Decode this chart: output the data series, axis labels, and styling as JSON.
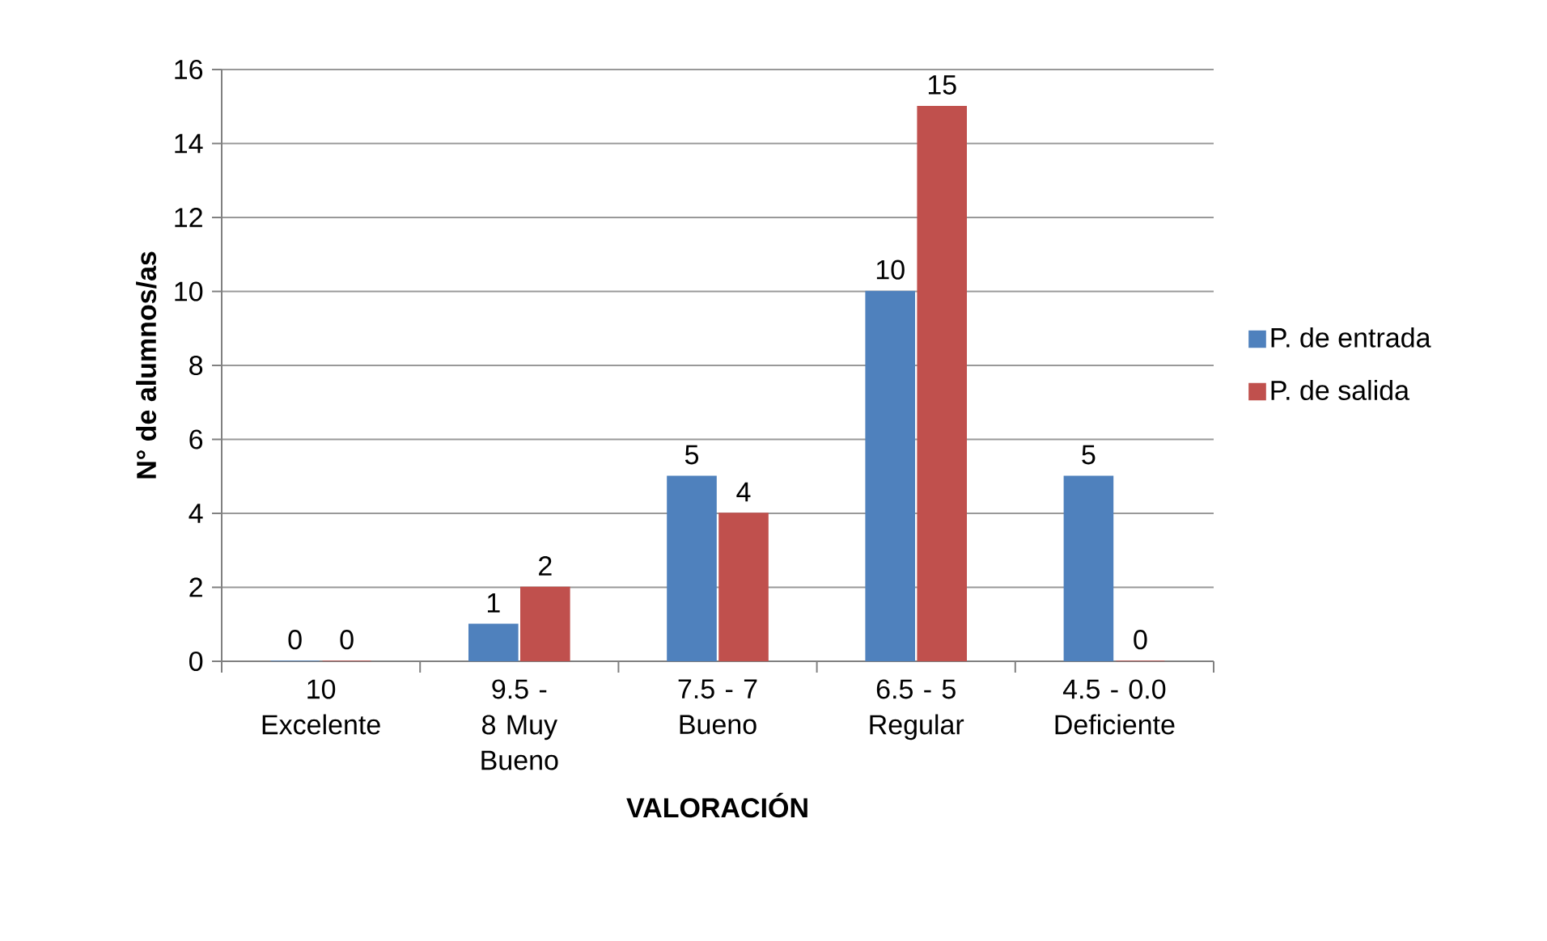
{
  "chart_data": {
    "type": "bar",
    "xlabel": "VALORACIÓN",
    "ylabel": "N° de alumnos/as",
    "categories": [
      "10 Excelente",
      "9.5 - 8 Muy Bueno",
      "7.5 - 7 Bueno",
      "6.5 - 5 Regular",
      "4.5 - 0.0 Deficiente"
    ],
    "series": [
      {
        "name": "P. de entrada",
        "color": "#4f81bd",
        "values": [
          0,
          1,
          5,
          10,
          5
        ]
      },
      {
        "name": "P. de salida",
        "color": "#c0504d",
        "values": [
          0,
          2,
          4,
          15,
          0
        ]
      }
    ],
    "ylim": [
      0,
      16
    ],
    "yticks": [
      0,
      2,
      4,
      6,
      8,
      10,
      12,
      14,
      16
    ],
    "grid": "y",
    "legend": "right",
    "data_labels": true
  }
}
